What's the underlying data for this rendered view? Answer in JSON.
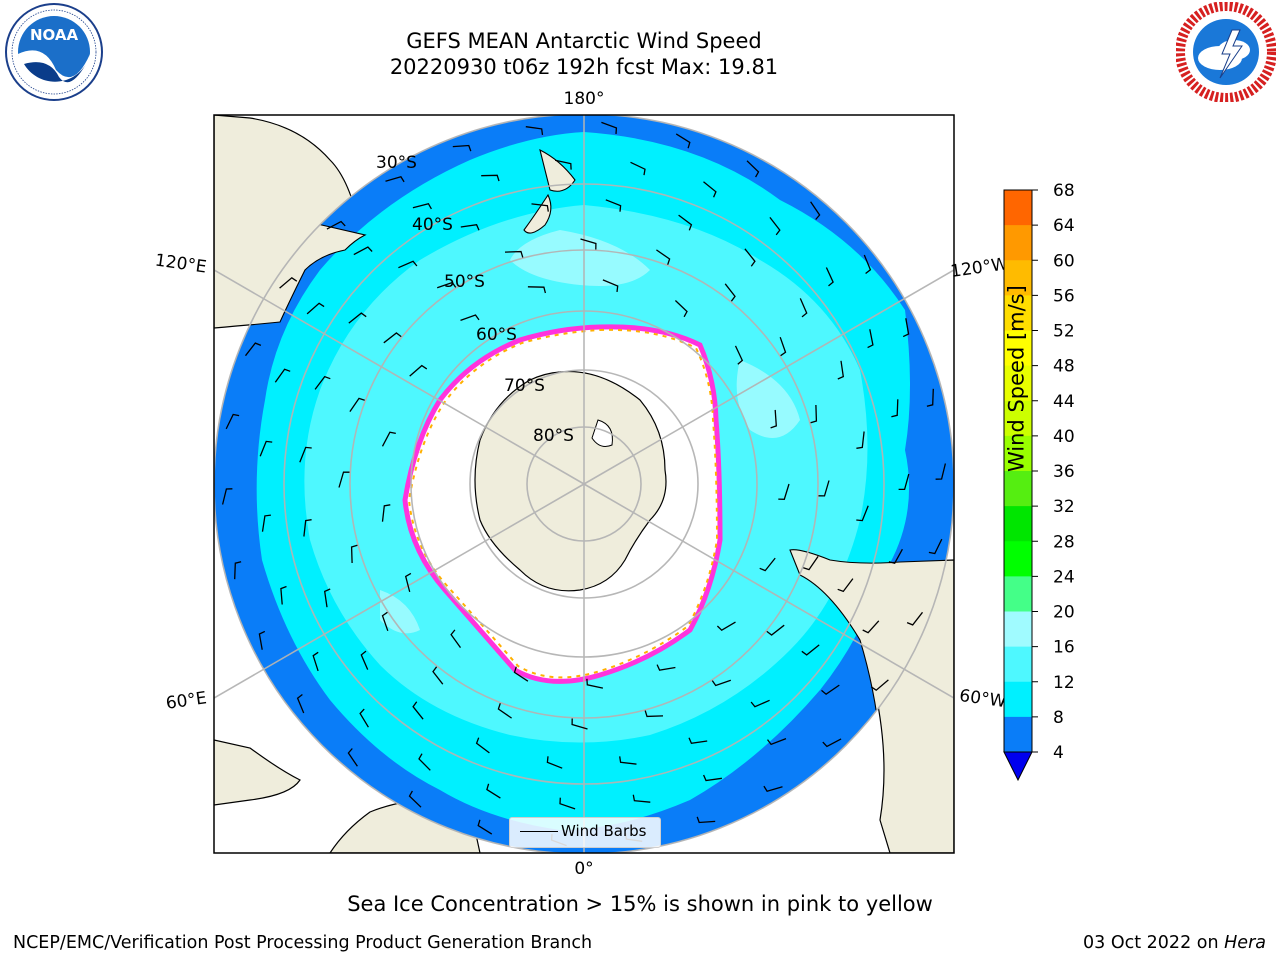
{
  "header": {
    "title_line1": "GEFS MEAN Antarctic Wind Speed",
    "title_line2": "20220930 t06z 192h fcst   Max: 19.81"
  },
  "logos": {
    "left": {
      "text": "NOAA",
      "icon": "noaa-logo-icon"
    },
    "right": {
      "icon": "national-weather-service-logo-icon"
    }
  },
  "map": {
    "projection": "south-polar-stereographic",
    "colors": {
      "land": "#efeddc",
      "ice_free_ocean_shelf": "#ffffff",
      "band_4_8": "#0a7df8",
      "band_8_12": "#00f0ff",
      "band_12_16": "#4ef8ff",
      "band_16_20": "#a0fbff",
      "sea_ice_edge": "#ff33dd",
      "sea_ice_edge_2": "#ffb000",
      "grid": "#b4b4b4"
    },
    "lat_labels": [
      "30°S",
      "40°S",
      "50°S",
      "60°S",
      "70°S",
      "80°S"
    ],
    "lon_labels": {
      "top": "180°",
      "bottom": "0°",
      "upper_left": "120°E",
      "upper_right": "120°W",
      "lower_left": "60°E",
      "lower_right": "60°W"
    },
    "legend_label": "Wind Barbs"
  },
  "colorbar": {
    "label": "Wind Speed [m/s]",
    "ticks": [
      "68",
      "64",
      "60",
      "56",
      "52",
      "48",
      "44",
      "40",
      "36",
      "32",
      "28",
      "24",
      "20",
      "16",
      "12",
      "8",
      "4"
    ],
    "colors": [
      "#ff0000",
      "#ff3300",
      "#ff6600",
      "#ff9900",
      "#ffbb00",
      "#ffdd00",
      "#ffff00",
      "#e8ff00",
      "#ccff00",
      "#99ff00",
      "#55ee11",
      "#00e600",
      "#00ff00",
      "#44ff88",
      "#a0fbff",
      "#4ef8ff",
      "#00f0ff",
      "#0a7df8"
    ],
    "extend_color": "#0000ee"
  },
  "bottom_note": "Sea Ice Concentration > 15% is shown in pink to yellow",
  "footer": {
    "left": "NCEP/EMC/Verification Post Processing Product Generation Branch",
    "right_date": "03 Oct 2022 on ",
    "right_host": "Hera"
  }
}
